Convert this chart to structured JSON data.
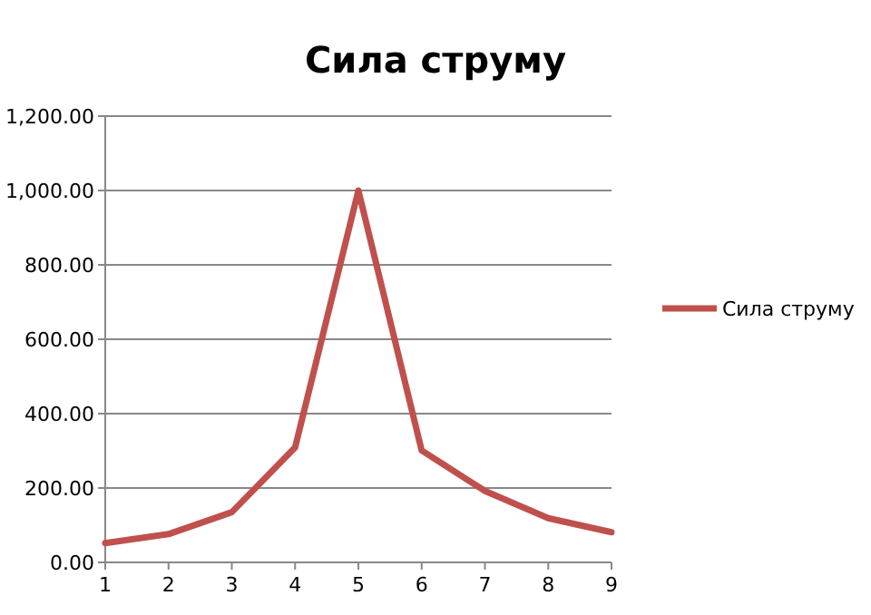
{
  "chart_data": {
    "type": "line",
    "title": "Сила струму",
    "x": [
      1,
      2,
      3,
      4,
      5,
      6,
      7,
      8,
      9
    ],
    "series": [
      {
        "name": "Сила струму",
        "color": "#c0504d",
        "values": [
          52,
          76,
          135,
          309,
          1000,
          301,
          192,
          119,
          81
        ]
      }
    ],
    "xlim": [
      1,
      9
    ],
    "xticks": [
      1,
      2,
      3,
      4,
      5,
      6,
      7,
      8,
      9
    ],
    "ylim": [
      0,
      1200
    ],
    "yticks": [
      {
        "value": 0,
        "label": "0.00"
      },
      {
        "value": 200,
        "label": "200.00"
      },
      {
        "value": 400,
        "label": "400.00"
      },
      {
        "value": 600,
        "label": "600.00"
      },
      {
        "value": 800,
        "label": "800.00"
      },
      {
        "value": 1000,
        "label": "1,000.00"
      },
      {
        "value": 1200,
        "label": "1,200.00"
      }
    ],
    "grid": "y",
    "legend": "right",
    "marker": "none",
    "line_style": "solid"
  }
}
